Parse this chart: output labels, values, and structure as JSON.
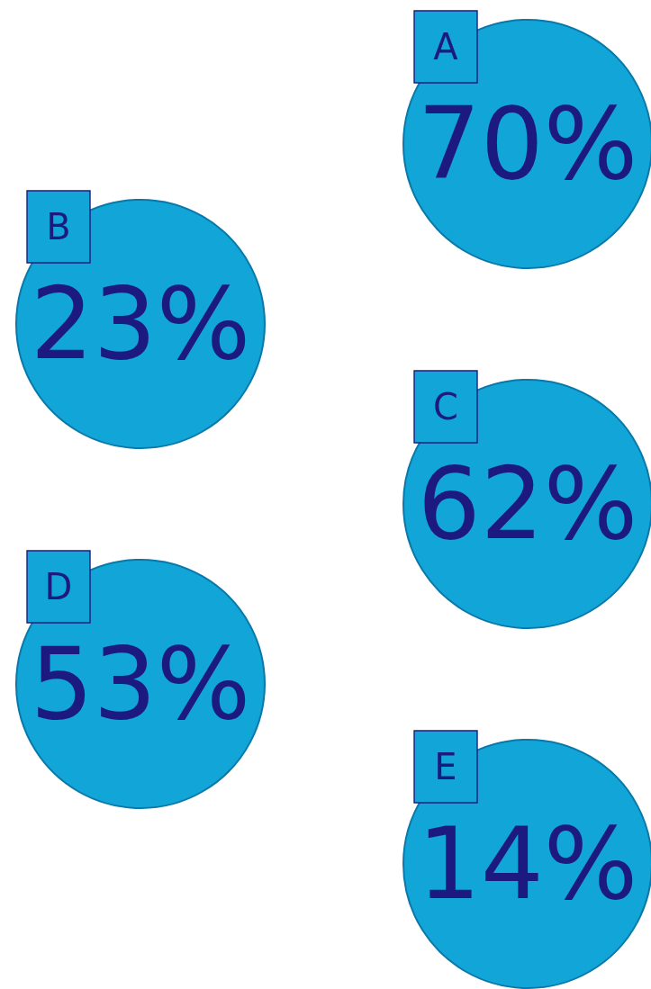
{
  "chart_data": {
    "type": "other",
    "categories": [
      "A",
      "B",
      "C",
      "D",
      "E"
    ],
    "values": [
      70,
      23,
      62,
      53,
      14
    ],
    "value_labels": [
      "70%",
      "23%",
      "62%",
      "53%",
      "14%"
    ],
    "color": "#12a5d8"
  }
}
